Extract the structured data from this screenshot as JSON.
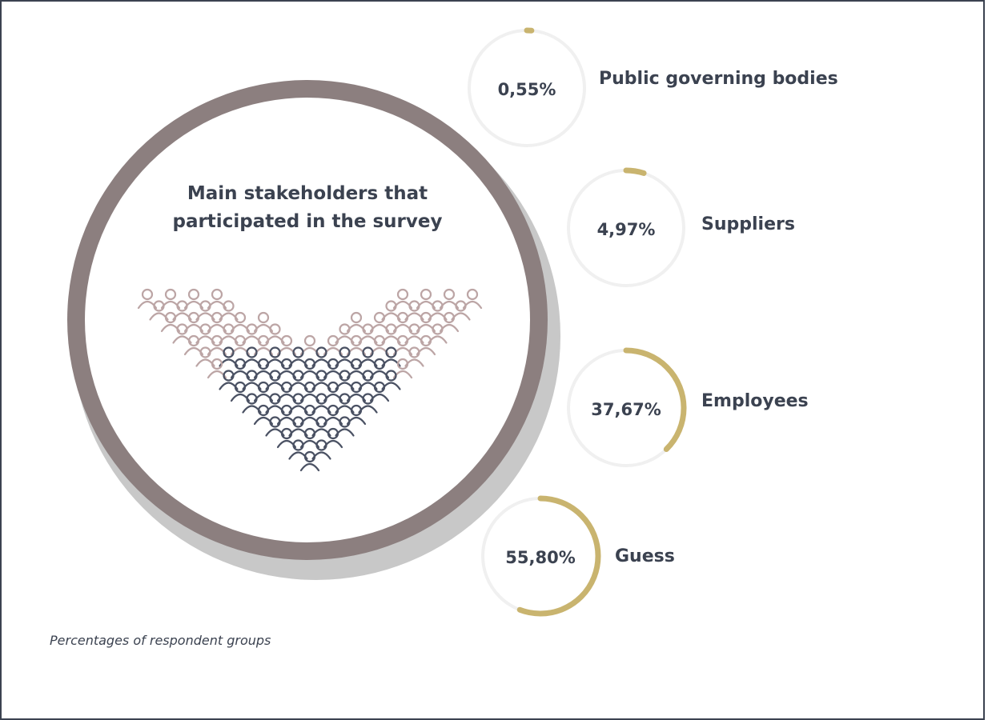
{
  "title": "Main stakeholders that participated in the survey",
  "footnote": "Percentages of respondent groups",
  "colors": {
    "accent": "#c9b46f",
    "track": "#f0f0f0",
    "main_ring": "#8c7f7f",
    "people_light": "#bca5a5",
    "people_dark": "#4a5163",
    "text": "#3b4250"
  },
  "chart_data": {
    "type": "pie",
    "title": "Main stakeholders that participated in the survey",
    "categories": [
      "Public governing bodies",
      "Suppliers",
      "Employees",
      "Guess"
    ],
    "values": [
      0.55,
      4.97,
      37.67,
      55.8
    ],
    "value_labels": [
      "0,55%",
      "4,97%",
      "37,67%",
      "55,80%"
    ],
    "unit": "%"
  }
}
